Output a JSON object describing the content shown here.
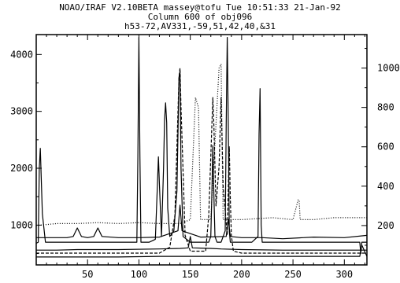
{
  "chart_data": {
    "type": "line",
    "title_lines": [
      "NOAO/IRAF V2.10BETA massey@tofu Tue 10:51:33 21-Jan-92",
      "Column 600 of obj096",
      "h53-72,AV331,-59,51,42,40,&31"
    ],
    "xlabel": "",
    "ylabel": "",
    "xlim": [
      0,
      322
    ],
    "ylim_left": [
      300,
      4350
    ],
    "ylim_right": [
      0,
      1170
    ],
    "x_ticks": [
      50,
      100,
      150,
      200,
      250,
      300
    ],
    "y_ticks_left": [
      1000,
      2000,
      3000,
      4000
    ],
    "y_ticks_right": [
      200,
      400,
      600,
      800,
      1000
    ],
    "grid": false,
    "series": [
      {
        "axis": "left",
        "style": "solid",
        "x": [
          0,
          2,
          3,
          4,
          6,
          9,
          20,
          40,
          60,
          80,
          98,
          99,
          100,
          101,
          102,
          110,
          116,
          118,
          119,
          120,
          122,
          124,
          125,
          126,
          127,
          128,
          130,
          134,
          137,
          139,
          140,
          141,
          143,
          150,
          160,
          165,
          168,
          170,
          171,
          172,
          173,
          174,
          176,
          180,
          184,
          185,
          186,
          187,
          188,
          189,
          190,
          195,
          200,
          210,
          216,
          217,
          218,
          219,
          220,
          240,
          260,
          280,
          300,
          315,
          316,
          317,
          322
        ],
        "values": [
          680,
          700,
          2000,
          2350,
          1200,
          700,
          700,
          700,
          700,
          700,
          700,
          2200,
          4300,
          2200,
          700,
          700,
          750,
          1700,
          2200,
          1700,
          800,
          2000,
          2850,
          3150,
          2800,
          1300,
          800,
          900,
          1600,
          3600,
          3700,
          2000,
          800,
          700,
          700,
          700,
          700,
          800,
          1500,
          2400,
          1500,
          800,
          700,
          700,
          900,
          2800,
          4300,
          2800,
          900,
          700,
          700,
          700,
          700,
          700,
          800,
          2600,
          3400,
          1000,
          700,
          700,
          700,
          700,
          700,
          700,
          500,
          700,
          700
        ]
      },
      {
        "axis": "left",
        "style": "solid",
        "x": [
          0,
          10,
          30,
          36,
          40,
          44,
          50,
          56,
          60,
          64,
          80,
          100,
          120,
          138,
          140,
          142,
          160,
          185,
          187,
          189,
          200,
          220,
          240,
          260,
          270,
          300,
          322
        ],
        "values": [
          780,
          780,
          780,
          800,
          950,
          800,
          780,
          800,
          950,
          800,
          780,
          780,
          790,
          900,
          1350,
          900,
          790,
          800,
          1100,
          800,
          780,
          780,
          760,
          780,
          790,
          780,
          820
        ]
      },
      {
        "axis": "left",
        "style": "solid",
        "x": [
          0,
          5,
          20,
          40,
          80,
          120,
          140,
          148,
          150,
          152,
          170,
          180,
          200,
          240,
          280,
          300,
          322
        ],
        "values": [
          560,
          560,
          560,
          570,
          570,
          580,
          590,
          600,
          800,
          600,
          590,
          580,
          570,
          560,
          560,
          560,
          560
        ]
      },
      {
        "axis": "left",
        "style": "solid",
        "x": [
          0,
          40,
          80,
          120,
          150,
          170,
          200,
          240,
          280,
          315,
          317,
          322
        ],
        "values": [
          440,
          440,
          440,
          450,
          450,
          450,
          450,
          450,
          450,
          450,
          650,
          450
        ]
      },
      {
        "axis": "right",
        "style": "dashed",
        "x": [
          0,
          20,
          50,
          100,
          110,
          120,
          130,
          135,
          139,
          140,
          141,
          145,
          150,
          165,
          168,
          171,
          172,
          173,
          175,
          178,
          180,
          182,
          186,
          188,
          189,
          190,
          192,
          200,
          240,
          290,
          322
        ],
        "values": [
          60,
          60,
          60,
          60,
          60,
          60,
          90,
          250,
          950,
          1000,
          800,
          150,
          70,
          70,
          250,
          700,
          850,
          700,
          300,
          500,
          850,
          400,
          150,
          600,
          340,
          150,
          70,
          60,
          60,
          60,
          60
        ]
      },
      {
        "axis": "right",
        "style": "dotted",
        "x": [
          0,
          20,
          40,
          60,
          80,
          100,
          120,
          140,
          150,
          155,
          158,
          160,
          170,
          178,
          180,
          182,
          190,
          200,
          230,
          250,
          255,
          256,
          257,
          270,
          290,
          310,
          322
        ],
        "values": [
          200,
          210,
          210,
          215,
          210,
          215,
          210,
          210,
          230,
          850,
          800,
          230,
          230,
          1000,
          1020,
          230,
          230,
          230,
          240,
          230,
          330,
          330,
          230,
          230,
          240,
          240,
          240
        ]
      }
    ]
  }
}
